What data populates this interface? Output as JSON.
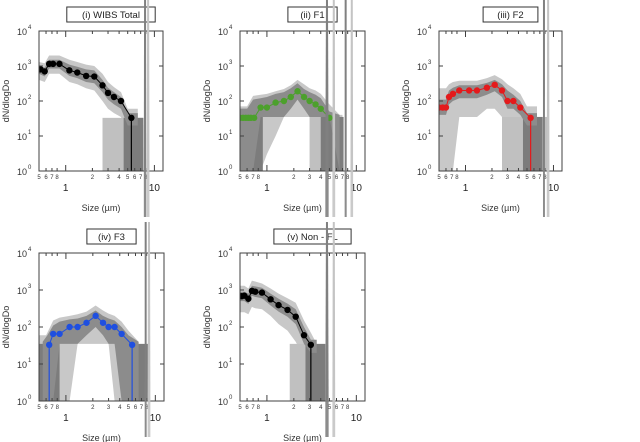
{
  "chart_data": [
    {
      "type": "line",
      "title": "(i) WIBS Total",
      "xlabel": "Size (µm)",
      "ylabel": "dN/dlogDo",
      "xscale": "log",
      "yscale": "log",
      "xlim": [
        0.5,
        12.5
      ],
      "ylim": [
        1,
        10000
      ],
      "ytick_labels": [
        "10",
        "10",
        "10",
        "10",
        "10"
      ],
      "ytick_exponents": [
        "0",
        "1",
        "2",
        "3",
        "4"
      ],
      "xtick_major_labels": [
        "1",
        "10"
      ],
      "xtick_minor_labels": [
        "5",
        "6",
        "7",
        "8",
        "2",
        "3",
        "4",
        "5",
        "6",
        "7",
        "8"
      ],
      "color": "#000000",
      "series": {
        "x": [
          0.52,
          0.58,
          0.65,
          0.72,
          0.85,
          1.1,
          1.35,
          1.7,
          2.1,
          2.6,
          3.0,
          3.5,
          4.2,
          5.5
        ],
        "y": [
          800,
          700,
          1150,
          1150,
          1150,
          750,
          650,
          520,
          500,
          280,
          170,
          130,
          100,
          33
        ]
      },
      "drop_line_x": 5.5,
      "band_inner": {
        "x": [
          0.5,
          0.58,
          0.65,
          0.72,
          0.85,
          1.1,
          1.35,
          1.7,
          2.1,
          2.6,
          3.0,
          3.5,
          4.2,
          5.0,
          6.5
        ],
        "upper": [
          1000,
          900,
          1500,
          1500,
          1500,
          1100,
          950,
          800,
          750,
          400,
          240,
          180,
          130,
          45,
          45
        ],
        "lower": [
          600,
          500,
          850,
          850,
          850,
          520,
          450,
          350,
          320,
          180,
          110,
          80,
          60,
          20,
          20
        ]
      },
      "band_outer": {
        "x": [
          0.5,
          0.58,
          0.65,
          0.72,
          0.85,
          1.1,
          1.35,
          1.7,
          2.1,
          2.6,
          3.0,
          3.5,
          4.2,
          5.0,
          6.5
        ],
        "upper": [
          1300,
          1200,
          2000,
          2000,
          2000,
          1500,
          1300,
          1100,
          1000,
          600,
          350,
          250,
          180,
          60,
          60
        ],
        "lower": [
          400,
          350,
          600,
          600,
          600,
          350,
          300,
          230,
          200,
          100,
          60,
          45,
          35,
          10,
          10
        ]
      },
      "bars": [
        {
          "x0": 2.6,
          "x1": 7.5,
          "top": 33,
          "shade": "light"
        },
        {
          "x0": 4.5,
          "x1": 7.5,
          "top": 33,
          "shade": "dark"
        }
      ],
      "spikes": [
        {
          "x0": 7.6,
          "x1": 8.1,
          "shade": "dark"
        },
        {
          "x0": 8.2,
          "x1": 8.8,
          "shade": "light"
        }
      ]
    },
    {
      "type": "line",
      "title": "(ii) F1",
      "xlabel": "Size (µm)",
      "ylabel": "dN/dlogDo",
      "xscale": "log",
      "yscale": "log",
      "xlim": [
        0.5,
        12.5
      ],
      "ylim": [
        1,
        10000
      ],
      "ytick_labels": [
        "10",
        "10",
        "10",
        "10",
        "10"
      ],
      "ytick_exponents": [
        "0",
        "1",
        "2",
        "3",
        "4"
      ],
      "xtick_major_labels": [
        "1",
        "10"
      ],
      "xtick_minor_labels": [
        "5",
        "6",
        "7",
        "8",
        "2",
        "3",
        "4",
        "5",
        "6",
        "7",
        "8"
      ],
      "color": "#4ca02c",
      "series": {
        "x": [
          0.5,
          0.54,
          0.58,
          0.62,
          0.66,
          0.72,
          0.85,
          1.0,
          1.25,
          1.55,
          1.85,
          2.2,
          2.6,
          3.0,
          3.5,
          4.0,
          5.0
        ],
        "y": [
          33,
          33,
          33,
          33,
          33,
          33,
          65,
          65,
          90,
          100,
          130,
          190,
          130,
          100,
          80,
          60,
          33
        ]
      },
      "drop_line_x": null,
      "band_inner": {
        "x": [
          0.5,
          0.6,
          0.7,
          0.85,
          1.0,
          1.25,
          1.55,
          1.85,
          2.2,
          2.6,
          3.0,
          3.5,
          4.0,
          5.0,
          6.5
        ],
        "upper": [
          60,
          60,
          110,
          120,
          130,
          160,
          180,
          230,
          320,
          220,
          180,
          150,
          120,
          50,
          40
        ],
        "lower": [
          1,
          1,
          1,
          35,
          35,
          35,
          35,
          60,
          110,
          60,
          35,
          35,
          35,
          35,
          1
        ]
      },
      "band_outer": {
        "x": [
          0.5,
          0.6,
          0.7,
          0.85,
          1.0,
          1.25,
          1.55,
          1.85,
          2.2,
          2.6,
          3.0,
          3.5,
          4.0,
          5.0,
          6.5,
          7.0
        ],
        "upper": [
          70,
          70,
          140,
          150,
          160,
          190,
          220,
          280,
          400,
          300,
          230,
          200,
          160,
          80,
          40,
          40
        ],
        "lower": [
          1,
          1,
          1,
          1,
          3,
          10,
          35,
          35,
          35,
          35,
          35,
          1,
          1,
          1,
          1,
          1
        ]
      },
      "bars": [
        {
          "x0": 0.5,
          "x1": 0.9,
          "top": 60,
          "shade": "dark"
        },
        {
          "x0": 3.0,
          "x1": 7.0,
          "top": 35,
          "shade": "light"
        },
        {
          "x0": 4.0,
          "x1": 7.2,
          "top": 35,
          "shade": "dark"
        }
      ],
      "spikes": [
        {
          "x0": 4.5,
          "x1": 4.9,
          "shade": "dark"
        },
        {
          "x0": 5.4,
          "x1": 5.8,
          "shade": "light"
        },
        {
          "x0": 7.4,
          "x1": 7.8,
          "shade": "dark"
        },
        {
          "x0": 8.6,
          "x1": 9.2,
          "shade": "light"
        }
      ]
    },
    {
      "type": "line",
      "title": "(iii) F2",
      "xlabel": "Size (µm)",
      "ylabel": "dN/dlogDo",
      "xscale": "log",
      "yscale": "log",
      "xlim": [
        0.5,
        12.5
      ],
      "ylim": [
        1,
        10000
      ],
      "ytick_labels": [
        "10",
        "10",
        "10",
        "10",
        "10"
      ],
      "ytick_exponents": [
        "0",
        "1",
        "2",
        "3",
        "4"
      ],
      "xtick_major_labels": [
        "1",
        "10"
      ],
      "xtick_minor_labels": [
        "5",
        "6",
        "7",
        "8",
        "2",
        "3",
        "4",
        "5",
        "6",
        "7",
        "8"
      ],
      "color": "#e41a1c",
      "series": {
        "x": [
          0.5,
          0.55,
          0.6,
          0.65,
          0.72,
          0.85,
          1.1,
          1.35,
          1.75,
          2.15,
          2.6,
          3.0,
          3.5,
          4.2,
          5.5
        ],
        "y": [
          65,
          65,
          65,
          130,
          160,
          200,
          200,
          200,
          240,
          290,
          200,
          100,
          100,
          65,
          33
        ]
      },
      "drop_line_x": 5.5,
      "band_inner": {
        "x": [
          0.5,
          0.6,
          0.65,
          0.72,
          0.85,
          1.1,
          1.35,
          1.75,
          2.15,
          2.6,
          3.0,
          3.5,
          4.2,
          5.0,
          6.5
        ],
        "upper": [
          110,
          110,
          200,
          240,
          280,
          280,
          280,
          330,
          400,
          300,
          200,
          150,
          100,
          45,
          45
        ],
        "lower": [
          40,
          40,
          80,
          100,
          120,
          120,
          120,
          150,
          190,
          130,
          60,
          60,
          40,
          20,
          20
        ]
      },
      "band_outer": {
        "x": [
          0.5,
          0.6,
          0.65,
          0.72,
          0.85,
          1.1,
          1.35,
          1.75,
          2.15,
          2.6,
          3.0,
          3.5,
          4.2,
          5.0,
          6.5
        ],
        "upper": [
          230,
          230,
          300,
          350,
          380,
          380,
          380,
          450,
          550,
          420,
          300,
          230,
          160,
          70,
          70
        ],
        "lower": [
          1,
          1,
          1,
          1,
          35,
          35,
          35,
          60,
          60,
          35,
          35,
          35,
          20,
          10,
          10
        ]
      },
      "bars": [
        {
          "x0": 2.6,
          "x1": 8.5,
          "top": 35,
          "shade": "light"
        },
        {
          "x0": 4.5,
          "x1": 7.5,
          "top": 35,
          "shade": "dark"
        }
      ],
      "spikes": [
        {
          "x0": 7.6,
          "x1": 8.0,
          "shade": "dark"
        },
        {
          "x0": 8.4,
          "x1": 9.0,
          "shade": "light"
        }
      ]
    },
    {
      "type": "line",
      "title": "(iv) F3",
      "xlabel": "Size (µm)",
      "ylabel": "dN/dlogDo",
      "xscale": "log",
      "yscale": "log",
      "xlim": [
        0.5,
        12.5
      ],
      "ylim": [
        1,
        10000
      ],
      "ytick_labels": [
        "10",
        "10",
        "10",
        "10",
        "10"
      ],
      "ytick_exponents": [
        "0",
        "1",
        "2",
        "3",
        "4"
      ],
      "xtick_major_labels": [
        "1",
        "10"
      ],
      "xtick_minor_labels": [
        "5",
        "6",
        "7",
        "8",
        "2",
        "3",
        "4",
        "5",
        "6",
        "7",
        "8"
      ],
      "color": "#1f4fe0",
      "series": {
        "x": [
          0.65,
          0.72,
          0.85,
          1.1,
          1.35,
          1.7,
          2.15,
          2.6,
          3.0,
          3.5,
          4.2,
          5.5
        ],
        "y": [
          33,
          65,
          65,
          100,
          100,
          130,
          200,
          130,
          100,
          100,
          65,
          33
        ]
      },
      "drop_line_x": [
        0.65,
        5.5
      ],
      "band_inner": {
        "x": [
          0.55,
          0.62,
          0.72,
          0.85,
          1.1,
          1.35,
          1.7,
          2.15,
          2.6,
          3.0,
          3.5,
          4.2,
          5.0,
          6.5
        ],
        "upper": [
          40,
          60,
          110,
          140,
          160,
          170,
          200,
          280,
          200,
          170,
          150,
          100,
          60,
          40
        ],
        "lower": [
          1,
          1,
          1,
          35,
          35,
          35,
          60,
          100,
          60,
          35,
          35,
          1,
          1,
          1
        ]
      },
      "band_outer": {
        "x": [
          0.5,
          0.6,
          0.72,
          0.85,
          1.1,
          1.35,
          1.7,
          2.15,
          2.6,
          3.0,
          3.5,
          4.2,
          5.0,
          6.5
        ],
        "upper": [
          60,
          60,
          150,
          180,
          200,
          220,
          260,
          380,
          280,
          230,
          200,
          140,
          80,
          40
        ],
        "lower": [
          1,
          1,
          1,
          1,
          1,
          35,
          35,
          35,
          35,
          35,
          1,
          1,
          1,
          1
        ]
      },
      "bars": [
        {
          "x0": 0.5,
          "x1": 0.85,
          "top": 35,
          "shade": "dark"
        },
        {
          "x0": 4.2,
          "x1": 8.5,
          "top": 35,
          "shade": "dark"
        }
      ],
      "spikes": [
        {
          "x0": 7.6,
          "x1": 8.0,
          "shade": "dark"
        },
        {
          "x0": 8.2,
          "x1": 8.8,
          "shade": "light"
        }
      ]
    },
    {
      "type": "line",
      "title": "(v) Non - FL",
      "xlabel": "Size (µm)",
      "ylabel": "dN/dlogDo",
      "xscale": "log",
      "yscale": "log",
      "xlim": [
        0.5,
        12.5
      ],
      "ylim": [
        1,
        10000
      ],
      "ytick_labels": [
        "10",
        "10",
        "10",
        "10",
        "10"
      ],
      "ytick_exponents": [
        "0",
        "1",
        "2",
        "3",
        "4"
      ],
      "xtick_major_labels": [
        "1",
        "10"
      ],
      "xtick_minor_labels": [
        "5",
        "6",
        "7",
        "8",
        "2",
        "3",
        "4",
        "5",
        "6",
        "7",
        "8"
      ],
      "color": "#000000",
      "series": {
        "x": [
          0.52,
          0.56,
          0.62,
          0.68,
          0.74,
          0.88,
          1.1,
          1.35,
          1.7,
          2.1,
          2.6,
          3.1
        ],
        "y": [
          680,
          700,
          580,
          950,
          900,
          850,
          560,
          390,
          290,
          190,
          60,
          33
        ]
      },
      "drop_line_x": 3.1,
      "band_inner": {
        "x": [
          0.5,
          0.56,
          0.62,
          0.68,
          0.74,
          0.88,
          1.1,
          1.35,
          1.7,
          2.1,
          2.6,
          3.1,
          3.6
        ],
        "upper": [
          900,
          900,
          800,
          1300,
          1250,
          1150,
          800,
          580,
          430,
          300,
          100,
          45,
          45
        ],
        "lower": [
          500,
          500,
          420,
          700,
          650,
          600,
          380,
          260,
          190,
          120,
          35,
          20,
          20
        ]
      },
      "band_outer": {
        "x": [
          0.5,
          0.56,
          0.62,
          0.68,
          0.74,
          0.88,
          1.1,
          1.35,
          1.7,
          2.1,
          2.6,
          3.1,
          3.6
        ],
        "upper": [
          1300,
          1300,
          1100,
          1800,
          1700,
          1500,
          1100,
          800,
          600,
          450,
          150,
          70,
          35
        ],
        "lower": [
          250,
          250,
          220,
          350,
          320,
          300,
          200,
          120,
          80,
          40,
          15,
          8,
          8
        ]
      },
      "bars": [
        {
          "x0": 1.8,
          "x1": 3.6,
          "top": 35,
          "shade": "light"
        },
        {
          "x0": 2.7,
          "x1": 4.5,
          "top": 35,
          "shade": "dark"
        }
      ],
      "spikes": [
        {
          "x0": 4.5,
          "x1": 4.9,
          "shade": "dark"
        },
        {
          "x0": 5.4,
          "x1": 5.8,
          "shade": "light"
        }
      ]
    }
  ],
  "colors": {
    "band_outer": "#c8c8c8",
    "band_inner": "#8c8c8c",
    "bar_light": "#c0c0c0",
    "bar_dark": "#7c7c7c",
    "spike_dark": "#808080",
    "spike_light": "#c4c4c4",
    "frame": "#404040"
  }
}
